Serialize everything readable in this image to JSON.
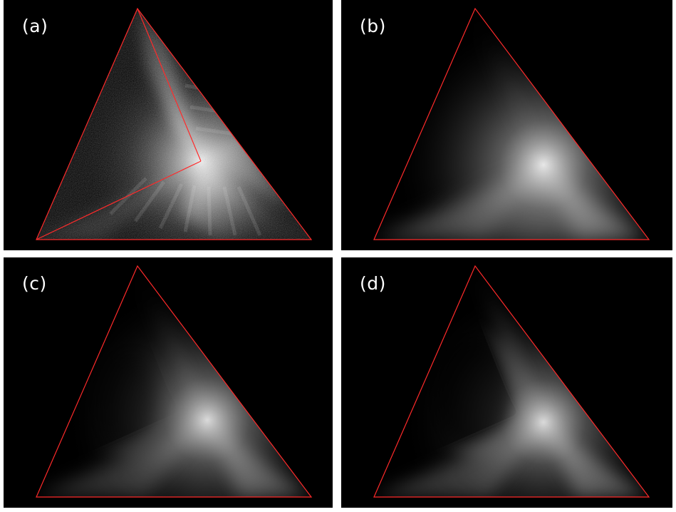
{
  "panels": [
    {
      "id": "a",
      "label": "(a)"
    },
    {
      "id": "b",
      "label": "(b)"
    },
    {
      "id": "c",
      "label": "(c)"
    },
    {
      "id": "d",
      "label": "(d)"
    }
  ],
  "colors": {
    "panel_background": "#000000",
    "triangle_outline": "#ff2a2a",
    "glow": "#ffffff",
    "label_text": "#ffffff",
    "page_background": "#ffffff"
  }
}
